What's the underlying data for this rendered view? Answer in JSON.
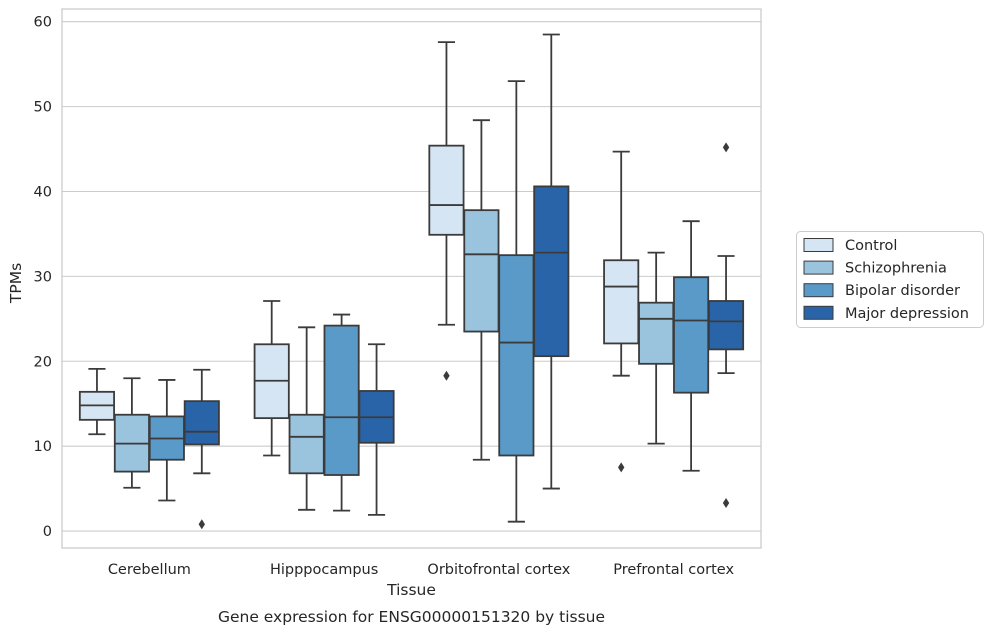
{
  "caption": "Gene expression for ENSG00000151320 by tissue",
  "chart_data": {
    "type": "boxplot",
    "title": "",
    "xlabel": "Tissue",
    "ylabel": "TPMs",
    "ylim": [
      -2,
      61.5
    ],
    "yticks": [
      0,
      10,
      20,
      30,
      40,
      50,
      60
    ],
    "grid": "horizontal",
    "legend_position": "right",
    "categories": [
      "Cerebellum",
      "Hipppocampus",
      "Orbitofrontal cortex",
      "Prefrontal cortex"
    ],
    "series": [
      {
        "name": "Control",
        "color": "#d6e5f3",
        "boxes": [
          {
            "whislo": 11.4,
            "q1": 13.1,
            "med": 14.8,
            "q3": 16.4,
            "whishi": 19.1,
            "fliers": []
          },
          {
            "whislo": 8.9,
            "q1": 13.3,
            "med": 17.7,
            "q3": 22.0,
            "whishi": 27.1,
            "fliers": []
          },
          {
            "whislo": 24.3,
            "q1": 34.9,
            "med": 38.4,
            "q3": 45.4,
            "whishi": 57.6,
            "fliers": [
              18.3
            ]
          },
          {
            "whislo": 18.3,
            "q1": 22.1,
            "med": 28.8,
            "q3": 31.9,
            "whishi": 44.7,
            "fliers": [
              7.5
            ]
          }
        ]
      },
      {
        "name": "Schizophrenia",
        "color": "#9ac3de",
        "boxes": [
          {
            "whislo": 5.1,
            "q1": 7.0,
            "med": 10.3,
            "q3": 13.7,
            "whishi": 18.0,
            "fliers": []
          },
          {
            "whislo": 2.5,
            "q1": 6.8,
            "med": 11.1,
            "q3": 13.7,
            "whishi": 24.0,
            "fliers": []
          },
          {
            "whislo": 8.4,
            "q1": 23.5,
            "med": 32.6,
            "q3": 37.8,
            "whishi": 48.4,
            "fliers": []
          },
          {
            "whislo": 10.3,
            "q1": 19.7,
            "med": 25.0,
            "q3": 26.9,
            "whishi": 32.8,
            "fliers": []
          }
        ]
      },
      {
        "name": "Bipolar disorder",
        "color": "#5a9ac8",
        "boxes": [
          {
            "whislo": 3.6,
            "q1": 8.4,
            "med": 10.9,
            "q3": 13.5,
            "whishi": 17.8,
            "fliers": []
          },
          {
            "whislo": 2.4,
            "q1": 6.6,
            "med": 13.4,
            "q3": 24.2,
            "whishi": 25.5,
            "fliers": []
          },
          {
            "whislo": 1.1,
            "q1": 8.9,
            "med": 22.2,
            "q3": 32.5,
            "whishi": 53.0,
            "fliers": []
          },
          {
            "whislo": 7.1,
            "q1": 16.3,
            "med": 24.8,
            "q3": 29.9,
            "whishi": 36.5,
            "fliers": []
          }
        ]
      },
      {
        "name": "Major depression",
        "color": "#2a64a8",
        "boxes": [
          {
            "whislo": 6.8,
            "q1": 10.2,
            "med": 11.7,
            "q3": 15.3,
            "whishi": 19.0,
            "fliers": [
              0.8
            ]
          },
          {
            "whislo": 1.9,
            "q1": 10.4,
            "med": 13.4,
            "q3": 16.5,
            "whishi": 22.0,
            "fliers": []
          },
          {
            "whislo": 5.0,
            "q1": 20.6,
            "med": 32.8,
            "q3": 40.6,
            "whishi": 58.5,
            "fliers": []
          },
          {
            "whislo": 18.6,
            "q1": 21.4,
            "med": 24.7,
            "q3": 27.1,
            "whishi": 32.4,
            "fliers": [
              3.3,
              45.2
            ]
          }
        ]
      }
    ]
  }
}
